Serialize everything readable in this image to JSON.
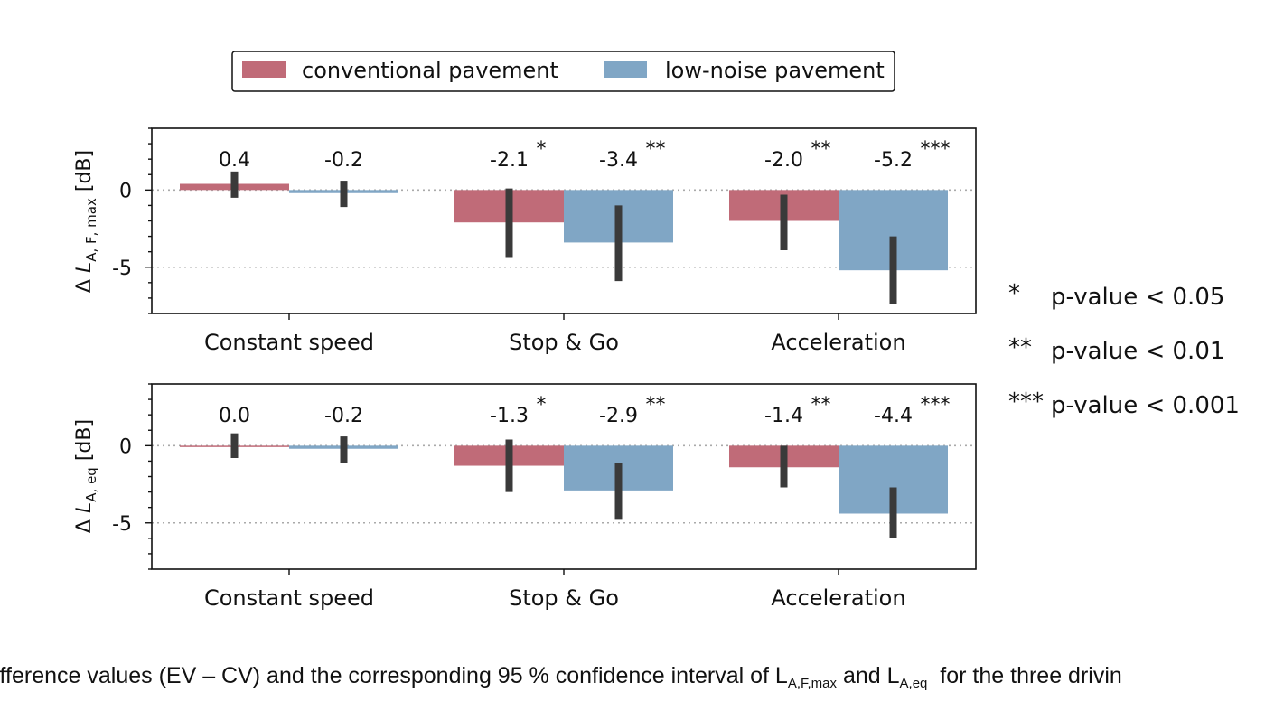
{
  "colors": {
    "conventional": "#c06b78",
    "low_noise": "#80a6c5",
    "errorbar": "#3a3a3a",
    "refline": "#aaaaaa"
  },
  "legend": {
    "placement": "top-center",
    "items": [
      "conventional pavement",
      "low-noise pavement"
    ]
  },
  "ylabel_top": {
    "delta": "Δ",
    "var": "L",
    "sub": "A, F, max",
    "unit": "[dB]"
  },
  "ylabel_bottom": {
    "delta": "Δ",
    "var": "L",
    "sub": "A, eq",
    "unit": "[dB]"
  },
  "significance": [
    {
      "stars": "*",
      "text": "p-value < 0.05"
    },
    {
      "stars": "**",
      "text": "p-value < 0.01"
    },
    {
      "stars": "***",
      "text": "p-value < 0.001"
    }
  ],
  "caption": {
    "before": "ifference values (EV – CV) and the corresponding 95 % confidence interval of L",
    "sub1": "A,F,max",
    "mid": " and L",
    "sub2": "A,eq",
    "after": "  for the three drivin"
  },
  "chart_data": [
    {
      "type": "bar",
      "ylabel": "Δ L_A,F,max [dB]",
      "categories": [
        "Constant speed",
        "Stop & Go",
        "Acceleration"
      ],
      "ylim": [
        -8,
        4
      ],
      "yticks": [
        0,
        -5
      ],
      "ytick_labels": [
        "0",
        "-5"
      ],
      "reference_lines": [
        0,
        -5
      ],
      "series": [
        {
          "name": "conventional pavement",
          "values": [
            0.4,
            -2.1,
            -2.0
          ],
          "ci": [
            [
              -0.5,
              1.2
            ],
            [
              -4.4,
              0.1
            ],
            [
              -3.9,
              -0.3
            ]
          ],
          "labels": [
            "0.4",
            "-2.1",
            "-2.0"
          ],
          "stars": [
            "",
            "*",
            "**"
          ]
        },
        {
          "name": "low-noise pavement",
          "values": [
            -0.2,
            -3.4,
            -5.2
          ],
          "ci": [
            [
              -1.1,
              0.6
            ],
            [
              -5.9,
              -1.0
            ],
            [
              -7.4,
              -3.0
            ]
          ],
          "labels": [
            "-0.2",
            "-3.4",
            "-5.2"
          ],
          "stars": [
            "",
            "**",
            "***"
          ]
        }
      ]
    },
    {
      "type": "bar",
      "ylabel": "Δ L_A,eq [dB]",
      "categories": [
        "Constant speed",
        "Stop & Go",
        "Acceleration"
      ],
      "ylim": [
        -8,
        4
      ],
      "yticks": [
        0,
        -5
      ],
      "ytick_labels": [
        "0",
        "-5"
      ],
      "reference_lines": [
        0,
        -5
      ],
      "series": [
        {
          "name": "conventional pavement",
          "values": [
            0.0,
            -1.3,
            -1.4
          ],
          "ci": [
            [
              -0.8,
              0.8
            ],
            [
              -3.0,
              0.4
            ],
            [
              -2.7,
              0.0
            ]
          ],
          "labels": [
            "0.0",
            "-1.3",
            "-1.4"
          ],
          "stars": [
            "",
            "*",
            "**"
          ]
        },
        {
          "name": "low-noise pavement",
          "values": [
            -0.2,
            -2.9,
            -4.4
          ],
          "ci": [
            [
              -1.1,
              0.6
            ],
            [
              -4.8,
              -1.1
            ],
            [
              -6.0,
              -2.7
            ]
          ],
          "labels": [
            "-0.2",
            "-2.9",
            "-4.4"
          ],
          "stars": [
            "",
            "**",
            "***"
          ]
        }
      ]
    }
  ]
}
